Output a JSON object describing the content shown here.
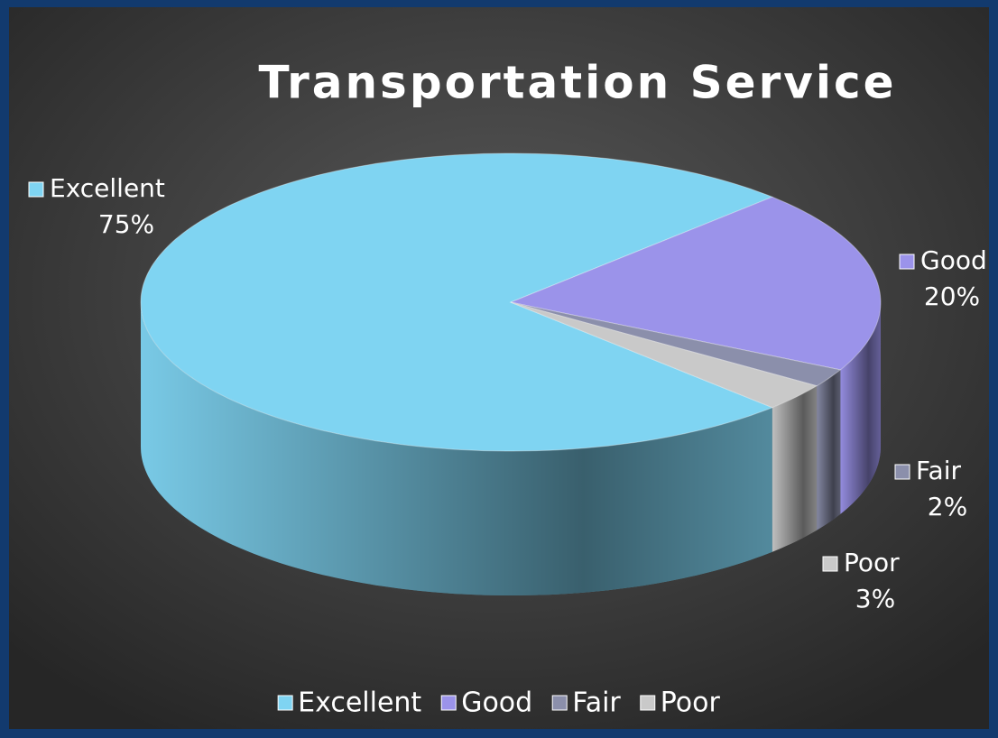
{
  "chart_data": {
    "type": "pie3d",
    "title": "Transportation Service",
    "categories": [
      "Excellent",
      "Good",
      "Fair",
      "Poor"
    ],
    "values": [
      75,
      20,
      2,
      3
    ],
    "value_labels": [
      "75%",
      "20%",
      "2%",
      "3%"
    ],
    "colors": [
      "#7fd4f2",
      "#9b93ea",
      "#8b8fab",
      "#c9c9c9"
    ],
    "legend": "bottom"
  }
}
